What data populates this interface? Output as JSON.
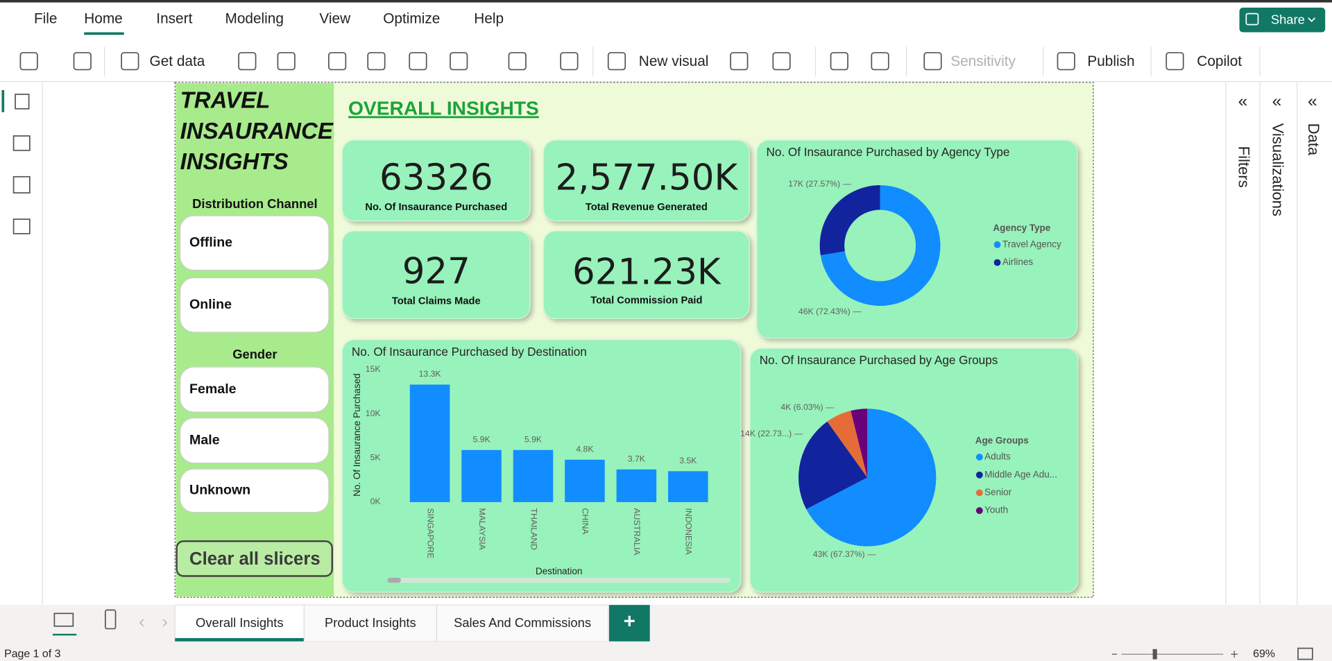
{
  "menu": [
    "File",
    "Home",
    "Insert",
    "Modeling",
    "View",
    "Optimize",
    "Help"
  ],
  "share": "Share",
  "ribbon": {
    "get_data": "Get data",
    "new_visual": "New visual",
    "sensitivity": "Sensitivity",
    "publish": "Publish",
    "copilot": "Copilot"
  },
  "panes": [
    "Filters",
    "Visualizations",
    "Data"
  ],
  "report": {
    "title": [
      "TRAVEL",
      "INSAURANCE",
      "INSIGHTS"
    ],
    "heading": "OVERALL INSIGHTS",
    "slicers": [
      {
        "title": "Distribution Channel",
        "items": [
          "Offline",
          "Online"
        ]
      },
      {
        "title": "Gender",
        "items": [
          "Female",
          "Male",
          "Unknown"
        ]
      }
    ],
    "clear_button": "Clear all slicers",
    "kpis": [
      {
        "value": "63326",
        "label": "No. Of Insaurance Purchased"
      },
      {
        "value": "2,577.50K",
        "label": "Total Revenue Generated"
      },
      {
        "value": "927",
        "label": "Total Claims Made"
      },
      {
        "value": "621.23K",
        "label": "Total Commission Paid"
      }
    ]
  },
  "chart_data": [
    {
      "type": "donut",
      "title": "No. Of Insaurance Purchased by Agency Type",
      "legend_title": "Agency Type",
      "categories": [
        "Travel Agency",
        "Airlines"
      ],
      "values": [
        45867,
        17459
      ],
      "value_labels": [
        "46K (72.43%)",
        "17K (27.57%)"
      ],
      "colors": [
        "#118dff",
        "#12239e"
      ]
    },
    {
      "type": "bar",
      "title": "No. Of Insaurance Purchased by Destination",
      "y_label": "No. Of Insaurance Purchased",
      "x_label": "Destination",
      "categories": [
        "SINGAPORE",
        "MALAYSIA",
        "THAILAND",
        "CHINA",
        "AUSTRALIA",
        "INDONESIA"
      ],
      "values": [
        13300,
        5900,
        5900,
        4800,
        3700,
        3500
      ],
      "value_labels": [
        "13.3K",
        "5.9K",
        "5.9K",
        "4.8K",
        "3.7K",
        "3.5K"
      ],
      "color": "#118dff",
      "ylim": [
        0,
        15000
      ],
      "yticks": [
        {
          "value": 0,
          "label": "0K"
        },
        {
          "value": 5000,
          "label": "5K"
        },
        {
          "value": 10000,
          "label": "10K"
        },
        {
          "value": 15000,
          "label": "15K"
        }
      ]
    },
    {
      "type": "pie",
      "title": "No. Of Insaurance Purchased by Age Groups",
      "legend_title": "Age Groups",
      "categories": [
        "Adults",
        "Middle Age Adu...",
        "Senior",
        "Youth"
      ],
      "values": [
        42663,
        14394,
        3819,
        2450
      ],
      "value_labels": [
        "43K (67.37%)",
        "14K (22.73...)",
        "4K (6.03%)",
        null
      ],
      "colors": [
        "#118dff",
        "#12239e",
        "#e66c37",
        "#6b007b"
      ]
    }
  ],
  "tabs": [
    "Overall Insights",
    "Product Insights",
    "Sales And Commissions"
  ],
  "add_tab": "+",
  "status": "Page 1 of 3",
  "zoom": "69%"
}
